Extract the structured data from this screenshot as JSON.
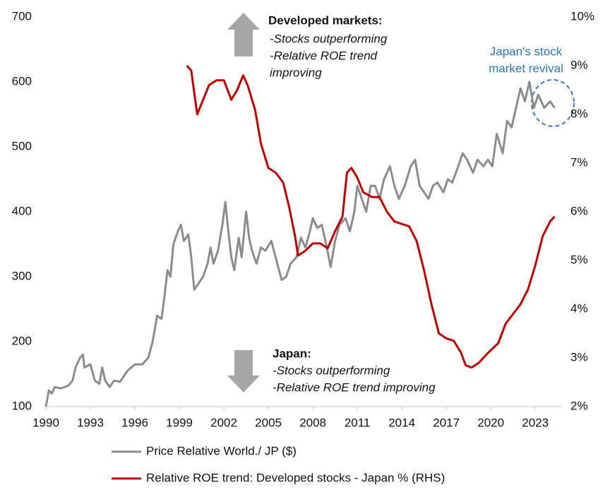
{
  "chart_data": {
    "type": "line",
    "xlim": [
      1990,
      2024.8
    ],
    "xticks": [
      1990,
      1993,
      1996,
      1999,
      2002,
      2005,
      2008,
      2011,
      2014,
      2017,
      2020,
      2023
    ],
    "ylim": [
      100,
      700
    ],
    "yticks": [
      100,
      200,
      300,
      400,
      500,
      600,
      700
    ],
    "y2lim": [
      2,
      10
    ],
    "y2ticks": [
      {
        "value": 2,
        "label": "2%"
      },
      {
        "value": 3,
        "label": "3%"
      },
      {
        "value": 4,
        "label": "4%"
      },
      {
        "value": 5,
        "label": "5%"
      },
      {
        "value": 6,
        "label": "6%"
      },
      {
        "value": 7,
        "label": "7%"
      },
      {
        "value": 8,
        "label": "8%"
      },
      {
        "value": 9,
        "label": "9%"
      },
      {
        "value": 10,
        "label": "10%"
      }
    ],
    "series": [
      {
        "name": "Price Relative World./ JP ($)",
        "color": "#8c8c8c",
        "x": [
          1990.0,
          1990.2,
          1990.4,
          1990.6,
          1991.0,
          1991.5,
          1991.8,
          1992.0,
          1992.3,
          1992.5,
          1992.6,
          1993.0,
          1993.3,
          1993.6,
          1993.8,
          1994.0,
          1994.3,
          1994.6,
          1995.0,
          1995.5,
          1996.0,
          1996.5,
          1996.9,
          1997.2,
          1997.5,
          1997.8,
          1998.0,
          1998.2,
          1998.4,
          1998.6,
          1998.9,
          1999.1,
          1999.3,
          1999.6,
          1999.8,
          2000.0,
          2000.3,
          2000.6,
          2000.9,
          2001.1,
          2001.3,
          2001.6,
          2001.9,
          2002.1,
          2002.3,
          2002.5,
          2002.7,
          2003.0,
          2003.2,
          2003.5,
          2003.7,
          2003.9,
          2004.2,
          2004.5,
          2004.8,
          2005.2,
          2005.6,
          2005.9,
          2006.2,
          2006.5,
          2006.9,
          2007.2,
          2007.5,
          2007.8,
          2008.0,
          2008.3,
          2008.6,
          2008.9,
          2009.2,
          2009.5,
          2009.8,
          2010.2,
          2010.5,
          2010.8,
          2011.0,
          2011.3,
          2011.6,
          2011.9,
          2012.2,
          2012.5,
          2012.8,
          2013.2,
          2013.5,
          2013.8,
          2014.2,
          2014.6,
          2014.9,
          2015.2,
          2015.5,
          2015.8,
          2016.1,
          2016.4,
          2016.8,
          2017.1,
          2017.4,
          2017.8,
          2018.1,
          2018.4,
          2018.8,
          2019.1,
          2019.5,
          2019.8,
          2020.1,
          2020.4,
          2020.8,
          2021.1,
          2021.4,
          2021.7,
          2022.0,
          2022.3,
          2022.6,
          2022.9,
          2023.2,
          2023.6,
          2024.0,
          2024.3
        ],
        "values": [
          100,
          125,
          120,
          130,
          128,
          132,
          140,
          160,
          175,
          180,
          160,
          165,
          140,
          135,
          160,
          140,
          130,
          140,
          138,
          155,
          165,
          165,
          175,
          200,
          240,
          235,
          270,
          310,
          300,
          350,
          370,
          380,
          355,
          365,
          330,
          280,
          290,
          300,
          320,
          345,
          320,
          340,
          380,
          415,
          370,
          330,
          310,
          360,
          330,
          400,
          360,
          340,
          320,
          345,
          340,
          355,
          320,
          295,
          300,
          320,
          330,
          360,
          345,
          370,
          390,
          375,
          380,
          350,
          315,
          355,
          380,
          390,
          370,
          400,
          440,
          420,
          400,
          440,
          440,
          420,
          450,
          470,
          440,
          420,
          440,
          470,
          480,
          440,
          430,
          420,
          440,
          445,
          430,
          450,
          445,
          470,
          490,
          480,
          460,
          480,
          470,
          480,
          470,
          520,
          490,
          540,
          530,
          560,
          590,
          570,
          600,
          560,
          580,
          560,
          570,
          560
        ]
      },
      {
        "name": "Relative ROE trend: Developed stocks - Japan % (RHS)",
        "color": "#c00000",
        "axis": "y2",
        "x": [
          1999.5,
          1999.8,
          2000.2,
          2000.6,
          2001.0,
          2001.5,
          2002.0,
          2002.5,
          2002.9,
          2003.3,
          2003.6,
          2004.1,
          2004.5,
          2005.0,
          2005.5,
          2006.0,
          2006.4,
          2006.8,
          2007.0,
          2007.5,
          2008.0,
          2008.5,
          2009.0,
          2009.5,
          2010.0,
          2010.3,
          2010.6,
          2011.0,
          2011.4,
          2012.0,
          2012.5,
          2013.0,
          2013.5,
          2014.0,
          2014.5,
          2015.0,
          2015.5,
          2016.0,
          2016.5,
          2017.0,
          2017.5,
          2018.0,
          2018.3,
          2018.7,
          2019.2,
          2019.8,
          2020.5,
          2021.0,
          2021.5,
          2022.0,
          2022.5,
          2023.0,
          2023.5,
          2024.0,
          2024.3
        ],
        "values": [
          9.0,
          8.9,
          8.0,
          8.3,
          8.6,
          8.7,
          8.7,
          8.3,
          8.5,
          8.8,
          8.6,
          8.1,
          7.4,
          6.9,
          6.8,
          6.6,
          6.1,
          5.5,
          5.1,
          5.2,
          5.35,
          5.35,
          5.25,
          5.6,
          5.9,
          6.8,
          6.9,
          6.7,
          6.4,
          6.3,
          6.3,
          6.0,
          5.8,
          5.75,
          5.7,
          5.4,
          4.8,
          4.1,
          3.5,
          3.4,
          3.35,
          3.1,
          2.85,
          2.8,
          2.9,
          3.1,
          3.3,
          3.7,
          3.9,
          4.1,
          4.4,
          4.9,
          5.5,
          5.8,
          5.9
        ]
      }
    ],
    "annotations": {
      "developed_title": "Developed markets:",
      "developed_lines": [
        "-Stocks outperforming",
        "-Relative ROE trend",
        "improving"
      ],
      "japan_title": "Japan:",
      "japan_lines": [
        "-Stocks outperforming",
        "-Relative ROE trend improving"
      ],
      "revival_lines": [
        "Japan's stock",
        "market revival"
      ]
    }
  }
}
